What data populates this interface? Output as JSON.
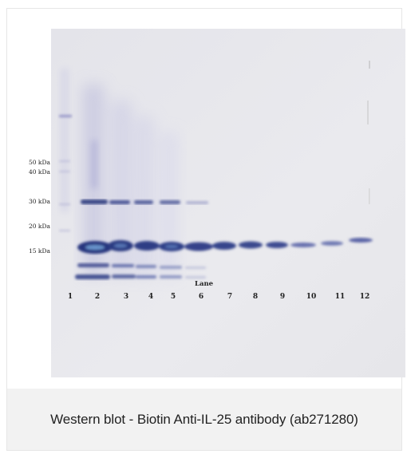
{
  "figure": {
    "markers": [
      "50 kDa",
      "40 kDa",
      "30 kDa",
      "20 kDa",
      "15 kDa"
    ],
    "lane_title": "Lane",
    "lanes": [
      "1",
      "2",
      "3",
      "4",
      "5",
      "6",
      "7",
      "8",
      "9",
      "10",
      "11",
      "12"
    ]
  },
  "caption": "Western blot - Biotin Anti-IL-25 antibody (ab271280)"
}
